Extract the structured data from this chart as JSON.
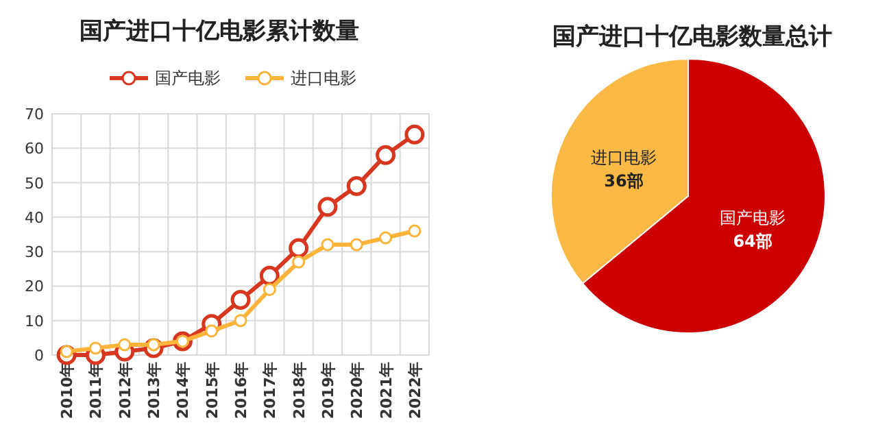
{
  "chart_data": [
    {
      "type": "line",
      "title": "国产进口十亿电影累计数量",
      "categories": [
        "2010年",
        "2011年",
        "2012年",
        "2013年",
        "2014年",
        "2015年",
        "2016年",
        "2017年",
        "2018年",
        "2019年",
        "2020年",
        "2021年",
        "2022年"
      ],
      "series": [
        {
          "name": "国产电影",
          "color": "#d7371e",
          "values": [
            0,
            0,
            1,
            2,
            4,
            9,
            16,
            23,
            31,
            43,
            49,
            58,
            64
          ]
        },
        {
          "name": "进口电影",
          "color": "#fbb33a",
          "values": [
            1,
            2,
            3,
            3,
            4,
            7,
            10,
            19,
            27,
            32,
            32,
            34,
            36
          ]
        }
      ],
      "ylim": [
        0,
        70
      ],
      "yticks": [
        0,
        10,
        20,
        30,
        40,
        50,
        60,
        70
      ],
      "grid": true,
      "legend": "top",
      "marker": "circle",
      "line_style": "solid"
    },
    {
      "type": "pie",
      "title": "国产进口十亿电影数量总计",
      "categories": [
        "国产电影",
        "进口电影"
      ],
      "values": [
        64,
        36
      ],
      "colors": [
        "#cc0000",
        "#f9b944"
      ],
      "value_labels": [
        "64部",
        "36部"
      ]
    }
  ]
}
